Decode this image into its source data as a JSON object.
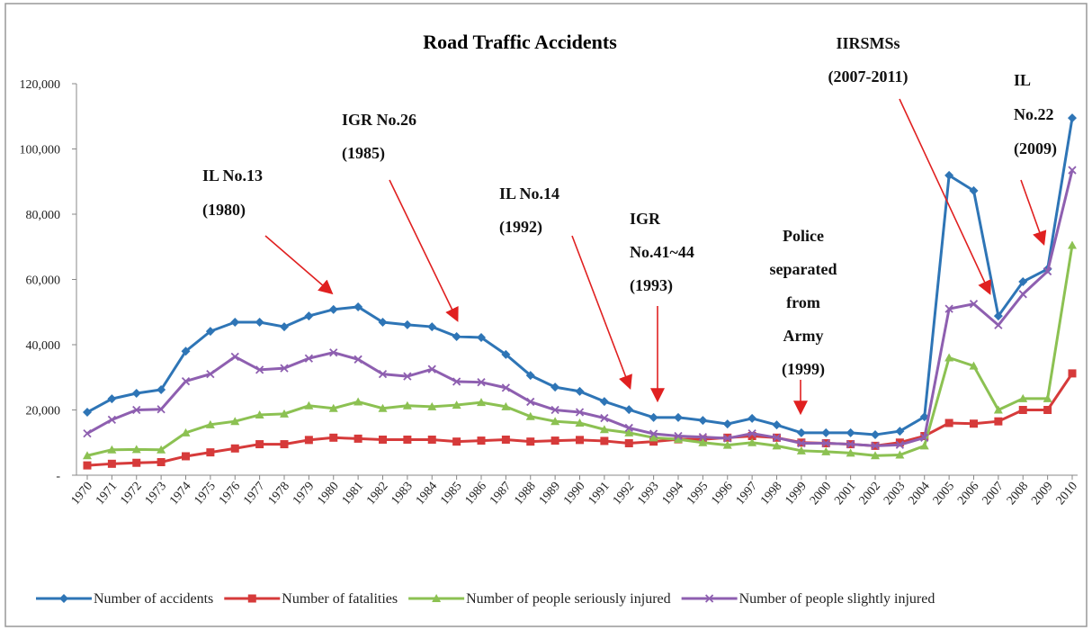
{
  "chart_data": {
    "type": "line",
    "title": "Road Traffic Accidents",
    "categories": [
      "1970",
      "1971",
      "1972",
      "1973",
      "1974",
      "1975",
      "1976",
      "1977",
      "1978",
      "1979",
      "1980",
      "1981",
      "1982",
      "1983",
      "1984",
      "1985",
      "1986",
      "1987",
      "1988",
      "1989",
      "1990",
      "1991",
      "1992",
      "1993",
      "1994",
      "1995",
      "1996",
      "1997",
      "1998",
      "1999",
      "2000",
      "2001",
      "2002",
      "2003",
      "2004",
      "2005",
      "2006",
      "2007",
      "2008",
      "2009",
      "2010"
    ],
    "series": [
      {
        "name": "Number of accidents",
        "color": "#2e75b6",
        "marker": "diamond",
        "values": [
          19300,
          23400,
          25100,
          26200,
          38000,
          44100,
          46900,
          46900,
          45500,
          48800,
          50800,
          51600,
          46900,
          46100,
          45500,
          42500,
          42200,
          37000,
          30600,
          27000,
          25700,
          22600,
          20100,
          17700,
          17700,
          16800,
          15700,
          17400,
          15400,
          13000,
          13000,
          13000,
          12400,
          13500,
          17900,
          91900,
          87200,
          48800,
          59300,
          63200,
          109500
        ]
      },
      {
        "name": "Number of fatalities",
        "color": "#d63a3a",
        "marker": "square",
        "values": [
          3000,
          3500,
          3800,
          4000,
          5800,
          7000,
          8200,
          9500,
          9500,
          10800,
          11500,
          11200,
          10900,
          10900,
          10900,
          10300,
          10600,
          10900,
          10300,
          10600,
          10800,
          10500,
          9800,
          10300,
          11000,
          11000,
          11500,
          12000,
          11500,
          10000,
          9800,
          9500,
          9000,
          10000,
          12000,
          16000,
          15800,
          16500,
          20000,
          20000,
          31200
        ]
      },
      {
        "name": "Number of people seriously injured",
        "color": "#8cc152",
        "marker": "triangle",
        "values": [
          6000,
          7800,
          7900,
          7800,
          13000,
          15500,
          16500,
          18500,
          18800,
          21300,
          20500,
          22500,
          20500,
          21300,
          21000,
          21500,
          22300,
          21000,
          18000,
          16500,
          16000,
          14000,
          13000,
          11500,
          11000,
          10000,
          9200,
          10000,
          9000,
          7500,
          7200,
          6800,
          6000,
          6200,
          9000,
          36000,
          33500,
          20000,
          23500,
          23500,
          70500
        ]
      },
      {
        "name": "Number of people slightly injured",
        "color": "#8e5fb0",
        "marker": "x",
        "values": [
          12800,
          17000,
          20000,
          20200,
          28800,
          31000,
          36300,
          32300,
          32800,
          35800,
          37600,
          35500,
          31000,
          30300,
          32500,
          28700,
          28500,
          26800,
          22500,
          20000,
          19300,
          17500,
          14500,
          12700,
          12000,
          11700,
          11300,
          12800,
          11500,
          9800,
          9800,
          9500,
          9000,
          9300,
          11500,
          51000,
          52500,
          46000,
          55500,
          62500,
          93500
        ]
      }
    ],
    "ylim": [
      0,
      120000
    ],
    "yticks": [
      {
        "value": 0,
        "label": "-"
      },
      {
        "value": 20000,
        "label": "20,000"
      },
      {
        "value": 40000,
        "label": "40,000"
      },
      {
        "value": 60000,
        "label": "60,000"
      },
      {
        "value": 80000,
        "label": "80,000"
      },
      {
        "value": 100000,
        "label": "100,000"
      },
      {
        "value": 120000,
        "label": "120,000"
      }
    ],
    "annotations": [
      [
        "IL No.13",
        "(1980)"
      ],
      [
        "IGR No.26",
        "(1985)"
      ],
      [
        "IL No.14",
        "(1992)"
      ],
      [
        "IGR",
        "No.41~44",
        "(1993)"
      ],
      [
        "Police",
        "separated",
        "from",
        "Army",
        "(1999)"
      ],
      [
        "IIRSMSs",
        "(2007-2011)"
      ],
      [
        "IL",
        "No.22",
        "(2009)"
      ]
    ],
    "legend": "bottom"
  }
}
